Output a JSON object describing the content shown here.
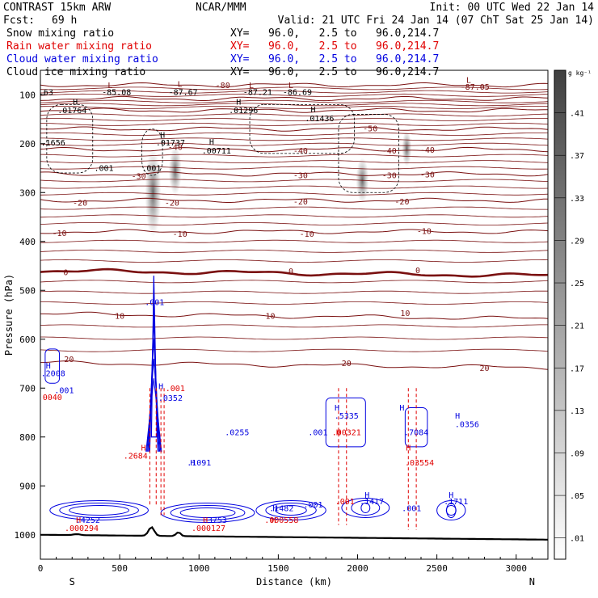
{
  "header": {
    "title": "CONTRAST 15km ARW",
    "fcst_label": "Fcst:",
    "fcst_value": "69 h",
    "org": "NCAR/MMM",
    "init": "Init: 00 UTC Wed 22 Jan 14",
    "valid": "Valid: 21 UTC Fri 24 Jan 14 (07 ChT Sat 25 Jan 14)"
  },
  "fields": [
    {
      "name": "Snow mixing ratio",
      "xy": "XY=   96.0,   2.5 to   96.0,214.7",
      "color": "#000000"
    },
    {
      "name": "Rain water mixing ratio",
      "xy": "XY=   96.0,   2.5 to   96.0,214.7",
      "color": "#e00000"
    },
    {
      "name": "Cloud water mixing ratio",
      "xy": "XY=   96.0,   2.5 to   96.0,214.7",
      "color": "#0000e0"
    },
    {
      "name": "Cloud ice mixing ratio",
      "xy": "XY=   96.0,   2.5 to   96.0,214.7",
      "color": "#000000"
    }
  ],
  "colors": {
    "temperature": "#7a1010",
    "terrain": "#000000",
    "rain": "#e00000",
    "cloud_water": "#0000e0",
    "ice_snow": "#000000"
  },
  "chart_data": {
    "type": "cross-section",
    "xlabel": "Distance (km)",
    "ylabel": "Pressure (hPa)",
    "xlim": [
      0,
      3200
    ],
    "ylim": [
      1050,
      50
    ],
    "x_ticks": [
      0,
      500,
      1000,
      1500,
      2000,
      2500,
      3000
    ],
    "y_ticks": [
      100,
      200,
      300,
      400,
      500,
      600,
      700,
      800,
      900,
      1000
    ],
    "endpoints": {
      "left": "S",
      "right": "N"
    },
    "colorbar": {
      "unit": "g kg⁻¹",
      "ticks": [
        ".41",
        ".37",
        ".33",
        ".29",
        ".25",
        ".21",
        ".17",
        ".13",
        ".09",
        ".05",
        ".01"
      ]
    },
    "temperature_contours": [
      {
        "value": -80,
        "p": 80
      },
      {
        "value": -70,
        "p": 108
      },
      {
        "value": -60,
        "p": 132
      },
      {
        "value": -50,
        "p": 170
      },
      {
        "value": -40,
        "p": 212
      },
      {
        "value": -30,
        "p": 262
      },
      {
        "value": -20,
        "p": 316
      },
      {
        "value": -10,
        "p": 380
      },
      {
        "value": 0,
        "p": 460
      },
      {
        "value": 10,
        "p": 548
      },
      {
        "value": 20,
        "p": 648
      }
    ],
    "temperature_labels": [
      {
        "text": "-80",
        "x": 1150,
        "p": 80
      },
      {
        "text": "-50",
        "x": 2080,
        "p": 168
      },
      {
        "text": "-40",
        "x": 850,
        "p": 206
      },
      {
        "text": "-40",
        "x": 1640,
        "p": 214
      },
      {
        "text": "-40",
        "x": 2200,
        "p": 214
      },
      {
        "text": "-40",
        "x": 2440,
        "p": 212
      },
      {
        "text": "-30",
        "x": 620,
        "p": 266
      },
      {
        "text": "-30",
        "x": 1640,
        "p": 264
      },
      {
        "text": "-30",
        "x": 2200,
        "p": 264
      },
      {
        "text": "-30",
        "x": 2440,
        "p": 262
      },
      {
        "text": "-20",
        "x": 250,
        "p": 320
      },
      {
        "text": "-20",
        "x": 830,
        "p": 320
      },
      {
        "text": "-20",
        "x": 1640,
        "p": 318
      },
      {
        "text": "-20",
        "x": 2280,
        "p": 318
      },
      {
        "text": "-10",
        "x": 120,
        "p": 382
      },
      {
        "text": "-10",
        "x": 880,
        "p": 384
      },
      {
        "text": "-10",
        "x": 1680,
        "p": 384
      },
      {
        "text": "-10",
        "x": 2420,
        "p": 378
      },
      {
        "text": "0",
        "x": 160,
        "p": 462
      },
      {
        "text": "0",
        "x": 1580,
        "p": 460
      },
      {
        "text": "0",
        "x": 2380,
        "p": 458
      },
      {
        "text": "10",
        "x": 500,
        "p": 552
      },
      {
        "text": "10",
        "x": 1450,
        "p": 552
      },
      {
        "text": "10",
        "x": 2300,
        "p": 546
      },
      {
        "text": "20",
        "x": 180,
        "p": 640
      },
      {
        "text": "20",
        "x": 1930,
        "p": 648
      },
      {
        "text": "20",
        "x": 2800,
        "p": 658
      }
    ],
    "point_labels": [
      {
        "text": "L",
        "x": 440,
        "p": 86,
        "color": "#7a1010"
      },
      {
        "text": "-85.08",
        "x": 480,
        "p": 100,
        "color": "#000000"
      },
      {
        "text": "L",
        "x": 880,
        "p": 84,
        "color": "#7a1010"
      },
      {
        "text": "-87.67",
        "x": 900,
        "p": 100,
        "color": "#000000"
      },
      {
        "text": "L",
        "x": 1330,
        "p": 86,
        "color": "#7a1010"
      },
      {
        "text": "-87.21",
        "x": 1370,
        "p": 100,
        "color": "#000000"
      },
      {
        "text": "L",
        "x": 1580,
        "p": 86,
        "color": "#7a1010"
      },
      {
        "text": "-86.69",
        "x": 1620,
        "p": 100,
        "color": "#000000"
      },
      {
        "text": "L",
        "x": 2700,
        "p": 76,
        "color": "#7a1010"
      },
      {
        "text": "-87.05",
        "x": 2740,
        "p": 90,
        "color": "#7a1010"
      },
      {
        "text": ".63",
        "x": 35,
        "p": 100,
        "color": "#000000"
      },
      {
        "text": "H",
        "x": 220,
        "p": 120,
        "color": "#000000"
      },
      {
        "text": ".01764",
        "x": 200,
        "p": 138,
        "color": "#000000"
      },
      {
        "text": "H",
        "x": 1250,
        "p": 120,
        "color": "#000000"
      },
      {
        "text": ".01296",
        "x": 1280,
        "p": 138,
        "color": "#000000"
      },
      {
        "text": "H",
        "x": 1720,
        "p": 136,
        "color": "#000000"
      },
      {
        "text": ".01436",
        "x": 1760,
        "p": 154,
        "color": "#000000"
      },
      {
        "text": ".1656",
        "x": 80,
        "p": 204,
        "color": "#000000"
      },
      {
        "text": "H",
        "x": 770,
        "p": 188,
        "color": "#000000"
      },
      {
        "text": ".01737",
        "x": 820,
        "p": 204,
        "color": "#000000"
      },
      {
        "text": "H",
        "x": 1080,
        "p": 202,
        "color": "#000000"
      },
      {
        "text": ".00711",
        "x": 1110,
        "p": 220,
        "color": "#000000"
      },
      {
        "text": ".001",
        "x": 400,
        "p": 256,
        "color": "#000000"
      },
      {
        "text": ".001",
        "x": 700,
        "p": 256,
        "color": "#000000"
      },
      {
        "text": ".001",
        "x": 720,
        "p": 530,
        "color": "#0000e0"
      },
      {
        "text": "H",
        "x": 50,
        "p": 660,
        "color": "#0000e0"
      },
      {
        "text": ".2008",
        "x": 80,
        "p": 676,
        "color": "#0000e0"
      },
      {
        "text": ".001",
        "x": 150,
        "p": 710,
        "color": "#0000e0"
      },
      {
        "text": ".0040",
        "x": 60,
        "p": 724,
        "color": "#e00000"
      },
      {
        "text": "H",
        "x": 760,
        "p": 702,
        "color": "#0000e0"
      },
      {
        "text": ".001",
        "x": 850,
        "p": 706,
        "color": "#e00000"
      },
      {
        "text": ".0352",
        "x": 820,
        "p": 726,
        "color": "#0000e0"
      },
      {
        "text": "H",
        "x": 1870,
        "p": 746,
        "color": "#0000e0"
      },
      {
        "text": ".5335",
        "x": 1930,
        "p": 762,
        "color": "#0000e0"
      },
      {
        "text": "H",
        "x": 2280,
        "p": 746,
        "color": "#0000e0"
      },
      {
        "text": ".0356",
        "x": 2690,
        "p": 780,
        "color": "#0000e0"
      },
      {
        "text": "H",
        "x": 2630,
        "p": 762,
        "color": "#0000e0"
      },
      {
        "text": ".0255",
        "x": 1240,
        "p": 796,
        "color": "#0000e0"
      },
      {
        "text": ".001",
        "x": 1750,
        "p": 796,
        "color": "#0000e0"
      },
      {
        "text": "H",
        "x": 1880,
        "p": 796,
        "color": "#e00000"
      },
      {
        "text": ".00321",
        "x": 1930,
        "p": 796,
        "color": "#e00000"
      },
      {
        "text": ".7084",
        "x": 2370,
        "p": 796,
        "color": "#0000e0"
      },
      {
        "text": "H",
        "x": 650,
        "p": 828,
        "color": "#e00000"
      },
      {
        "text": ".2684",
        "x": 600,
        "p": 844,
        "color": "#e00000"
      },
      {
        "text": "H",
        "x": 960,
        "p": 858,
        "color": "#0000e0"
      },
      {
        "text": ".1091",
        "x": 1000,
        "p": 858,
        "color": "#0000e0"
      },
      {
        "text": "H",
        "x": 2320,
        "p": 828,
        "color": "#e00000"
      },
      {
        "text": ".03554",
        "x": 2390,
        "p": 858,
        "color": "#e00000"
      },
      {
        "text": ".001",
        "x": 1920,
        "p": 938,
        "color": "#e00000"
      },
      {
        "text": "H",
        "x": 2060,
        "p": 924,
        "color": "#0000e0"
      },
      {
        "text": ".1417",
        "x": 2090,
        "p": 938,
        "color": "#0000e0"
      },
      {
        "text": "H",
        "x": 2590,
        "p": 924,
        "color": "#0000e0"
      },
      {
        "text": ".1711",
        "x": 2620,
        "p": 938,
        "color": "#0000e0"
      },
      {
        "text": "H",
        "x": 1480,
        "p": 952,
        "color": "#0000e0"
      },
      {
        "text": ".1482",
        "x": 1520,
        "p": 952,
        "color": "#0000e0"
      },
      {
        "text": ".001",
        "x": 1720,
        "p": 944,
        "color": "#0000e0"
      },
      {
        "text": ".001",
        "x": 2340,
        "p": 952,
        "color": "#0000e0"
      },
      {
        "text": "H",
        "x": 240,
        "p": 976,
        "color": "#e00000"
      },
      {
        "text": ".4252",
        "x": 300,
        "p": 976,
        "color": "#0000e0"
      },
      {
        "text": ".000294",
        "x": 260,
        "p": 992,
        "color": "#e00000"
      },
      {
        "text": "H",
        "x": 1040,
        "p": 976,
        "color": "#e00000"
      },
      {
        "text": ".3753",
        "x": 1100,
        "p": 976,
        "color": "#0000e0"
      },
      {
        "text": ".000127",
        "x": 1060,
        "p": 992,
        "color": "#e00000"
      },
      {
        "text": "H",
        "x": 1470,
        "p": 976,
        "color": "#e00000"
      },
      {
        "text": ".000558",
        "x": 1520,
        "p": 976,
        "color": "#e00000"
      }
    ]
  }
}
